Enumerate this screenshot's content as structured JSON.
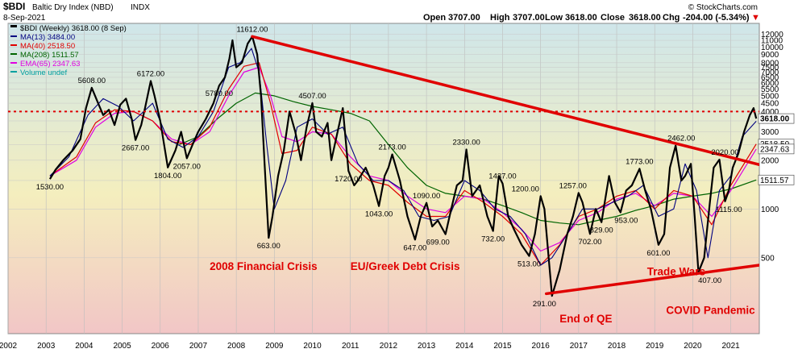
{
  "header": {
    "symbol": "$BDI",
    "name": "Baltic Dry Index (NBD)",
    "exchange": "INDX",
    "date": "8-Sep-2021",
    "brand": "© StockCharts.com",
    "open_label": "Open",
    "open": "3707.00",
    "high_label": "High",
    "high": "3707.00",
    "low_label": "Low",
    "low": "3618.00",
    "close_label": "Close",
    "close": "3618.00",
    "chg_label": "Chg",
    "chg": "-204.00 (-5.34%)"
  },
  "legend": [
    {
      "text": "$BDI (Weekly) 3618.00 (8 Sep)",
      "color": "#000000"
    },
    {
      "text": "MA(13) 3484.00",
      "color": "#000080"
    },
    {
      "text": "MA(40) 2518.50",
      "color": "#e00000"
    },
    {
      "text": "MA(208) 1511.57",
      "color": "#006400"
    },
    {
      "text": "EMA(65) 2347.63",
      "color": "#e000e0"
    },
    {
      "text": "Volume undef",
      "color": "#00a0a0"
    }
  ],
  "colors": {
    "bg_top": "#cfe6ea",
    "bg_mid": "#f4eebe",
    "bg_bottom": "#f2c6c6",
    "price": "#000000",
    "ma13": "#000080",
    "ma40": "#e00000",
    "ma208": "#006400",
    "ema65": "#e000e0",
    "annotation": "#e00000"
  },
  "chart_data": {
    "type": "line",
    "title": "$BDI Baltic Dry Index (NBD) INDX",
    "y_scale": "log",
    "ylim": [
      170,
      14000
    ],
    "xlim": [
      2002.0,
      2021.75
    ],
    "x_ticks": [
      "2002",
      "2003",
      "2004",
      "2005",
      "2006",
      "2007",
      "2008",
      "2009",
      "2010",
      "2011",
      "2012",
      "2013",
      "2014",
      "2015",
      "2016",
      "2017",
      "2018",
      "2019",
      "2020",
      "2021"
    ],
    "y_ticks": [
      "12000",
      "11000",
      "10000",
      "9000",
      "8000",
      "7500",
      "7000",
      "6500",
      "6000",
      "5500",
      "5000",
      "4500",
      "4000",
      "3500",
      "3000",
      "2500",
      "2000",
      "1500",
      "1000",
      "500"
    ],
    "series": [
      {
        "name": "$BDI (Weekly)",
        "x": [
          2003.1,
          2003.25,
          2003.45,
          2003.7,
          2003.9,
          2004.05,
          2004.2,
          2004.35,
          2004.5,
          2004.65,
          2004.8,
          2004.95,
          2005.1,
          2005.25,
          2005.35,
          2005.5,
          2005.6,
          2005.75,
          2005.85,
          2006.0,
          2006.2,
          2006.4,
          2006.55,
          2006.7,
          2006.85,
          2007.0,
          2007.2,
          2007.4,
          2007.55,
          2007.7,
          2007.82,
          2007.9,
          2008.0,
          2008.15,
          2008.3,
          2008.42,
          2008.55,
          2008.65,
          2008.75,
          2008.85,
          2008.95,
          2009.1,
          2009.25,
          2009.4,
          2009.55,
          2009.7,
          2009.85,
          2010.0,
          2010.1,
          2010.25,
          2010.4,
          2010.5,
          2010.65,
          2010.8,
          2010.95,
          2011.1,
          2011.2,
          2011.4,
          2011.6,
          2011.75,
          2011.9,
          2012.0,
          2012.1,
          2012.3,
          2012.5,
          2012.7,
          2012.85,
          2013.0,
          2013.15,
          2013.3,
          2013.5,
          2013.65,
          2013.8,
          2013.95,
          2014.05,
          2014.2,
          2014.4,
          2014.6,
          2014.75,
          2014.9,
          2015.0,
          2015.15,
          2015.3,
          2015.5,
          2015.7,
          2015.85,
          2016.0,
          2016.1,
          2016.3,
          2016.5,
          2016.7,
          2016.85,
          2017.0,
          2017.1,
          2017.3,
          2017.45,
          2017.6,
          2017.8,
          2017.95,
          2018.1,
          2018.25,
          2018.4,
          2018.6,
          2018.75,
          2018.9,
          2019.1,
          2019.25,
          2019.4,
          2019.55,
          2019.7,
          2019.8,
          2019.95,
          2020.05,
          2020.15,
          2020.3,
          2020.45,
          2020.55,
          2020.7,
          2020.85,
          2020.95,
          2021.05,
          2021.2,
          2021.35,
          2021.5,
          2021.6,
          2021.67
        ],
        "y": [
          1530,
          1750,
          2000,
          2300,
          2700,
          4200,
          5608,
          4600,
          3800,
          4100,
          3300,
          4400,
          4800,
          3600,
          2667,
          3300,
          4200,
          6172,
          5000,
          3500,
          1804,
          2300,
          3000,
          2057,
          2500,
          3000,
          3600,
          4500,
          5780,
          6500,
          8500,
          11000,
          7500,
          8000,
          10500,
          11612,
          9000,
          5000,
          1800,
          663,
          900,
          1600,
          2300,
          4000,
          3000,
          2000,
          3200,
          4507,
          3000,
          2800,
          3400,
          2000,
          2900,
          4200,
          1720,
          1400,
          1500,
          1800,
          1400,
          1043,
          1600,
          1800,
          2173,
          1500,
          900,
          647,
          900,
          1090,
          780,
          850,
          699,
          1000,
          1400,
          1500,
          2330,
          1200,
          1400,
          900,
          732,
          1600,
          1437,
          900,
          750,
          600,
          513,
          700,
          1200,
          1000,
          291,
          420,
          700,
          900,
          1257,
          1100,
          702,
          1000,
          829,
          1600,
          1100,
          953,
          1300,
          1400,
          1773,
          1300,
          1000,
          601,
          700,
          1800,
          2462,
          1500,
          1600,
          1900,
          900,
          407,
          500,
          1100,
          1800,
          2020,
          1115,
          1300,
          1800,
          2200,
          3000,
          3800,
          4200,
          3618
        ]
      },
      {
        "name": "MA(13)",
        "x": [
          2003.1,
          2003.6,
          2004.1,
          2004.5,
          2004.9,
          2005.3,
          2005.8,
          2006.2,
          2006.6,
          2007.0,
          2007.4,
          2007.8,
          2008.1,
          2008.4,
          2008.6,
          2008.8,
          2009.0,
          2009.3,
          2009.6,
          2010.0,
          2010.4,
          2010.8,
          2011.2,
          2011.6,
          2012.0,
          2012.4,
          2012.8,
          2013.2,
          2013.6,
          2014.0,
          2014.4,
          2014.8,
          2015.2,
          2015.6,
          2016.0,
          2016.3,
          2016.7,
          2017.1,
          2017.5,
          2017.9,
          2018.3,
          2018.7,
          2019.1,
          2019.5,
          2019.8,
          2020.1,
          2020.4,
          2020.7,
          2021.0,
          2021.3,
          2021.67
        ],
        "y": [
          1600,
          2100,
          3800,
          4800,
          4300,
          3500,
          4500,
          2700,
          2400,
          2800,
          4000,
          7500,
          8000,
          9800,
          7000,
          2500,
          1000,
          1500,
          3200,
          3600,
          2900,
          3200,
          1900,
          1500,
          1500,
          1300,
          900,
          850,
          900,
          1500,
          1300,
          1000,
          900,
          700,
          450,
          500,
          700,
          1000,
          1000,
          1100,
          1200,
          1400,
          900,
          1000,
          1900,
          1300,
          500,
          1300,
          1600,
          2800,
          3484
        ]
      },
      {
        "name": "MA(40)",
        "x": [
          2003.1,
          2003.8,
          2004.3,
          2004.8,
          2005.3,
          2005.8,
          2006.3,
          2006.8,
          2007.3,
          2007.8,
          2008.2,
          2008.6,
          2008.9,
          2009.2,
          2009.6,
          2010.0,
          2010.5,
          2011.0,
          2011.5,
          2012.0,
          2012.5,
          2013.0,
          2013.5,
          2014.0,
          2014.5,
          2015.0,
          2015.5,
          2016.0,
          2016.5,
          2017.0,
          2017.5,
          2018.0,
          2018.5,
          2019.0,
          2019.5,
          2020.0,
          2020.5,
          2021.0,
          2021.67
        ],
        "y": [
          1600,
          2100,
          3400,
          4100,
          4000,
          3500,
          2600,
          2500,
          3200,
          5500,
          7600,
          8000,
          4500,
          2200,
          2300,
          3200,
          2900,
          1900,
          1500,
          1400,
          1100,
          900,
          900,
          1300,
          1100,
          900,
          700,
          450,
          600,
          900,
          1000,
          1200,
          1300,
          1000,
          1300,
          1200,
          800,
          1400,
          2518
        ]
      },
      {
        "name": "MA(208)",
        "x": [
          2006.5,
          2007.0,
          2007.5,
          2008.0,
          2008.5,
          2009.0,
          2009.5,
          2010.0,
          2010.5,
          2011.0,
          2011.5,
          2012.0,
          2012.5,
          2013.0,
          2013.5,
          2014.0,
          2014.5,
          2015.0,
          2015.5,
          2016.0,
          2016.5,
          2017.0,
          2017.5,
          2018.0,
          2018.5,
          2019.0,
          2019.5,
          2020.0,
          2020.5,
          2021.0,
          2021.67
        ],
        "y": [
          2500,
          2800,
          3600,
          4500,
          5200,
          5000,
          4600,
          4300,
          4100,
          3900,
          3500,
          2500,
          1800,
          1400,
          1250,
          1200,
          1150,
          1050,
          950,
          850,
          820,
          800,
          850,
          900,
          980,
          1050,
          1150,
          1200,
          1250,
          1330,
          1511
        ]
      },
      {
        "name": "EMA(65)",
        "x": [
          2003.1,
          2003.8,
          2004.3,
          2004.8,
          2005.3,
          2005.8,
          2006.3,
          2006.8,
          2007.3,
          2007.8,
          2008.2,
          2008.6,
          2008.9,
          2009.2,
          2009.6,
          2010.0,
          2010.5,
          2011.0,
          2011.5,
          2012.0,
          2012.5,
          2013.0,
          2013.5,
          2014.0,
          2014.5,
          2015.0,
          2015.5,
          2016.0,
          2016.5,
          2017.0,
          2017.5,
          2018.0,
          2018.5,
          2019.0,
          2019.5,
          2020.0,
          2020.5,
          2021.0,
          2021.67
        ],
        "y": [
          1600,
          2000,
          3200,
          3900,
          4000,
          3500,
          2700,
          2500,
          3000,
          5000,
          7000,
          7500,
          5000,
          2800,
          2600,
          3000,
          2900,
          2100,
          1600,
          1500,
          1200,
          1000,
          950,
          1200,
          1150,
          950,
          750,
          550,
          620,
          850,
          950,
          1150,
          1250,
          1050,
          1250,
          1200,
          900,
          1300,
          2347
        ]
      }
    ],
    "point_labels": [
      {
        "x": 2003.1,
        "y": 1530,
        "text": "1530.00",
        "pos": "below"
      },
      {
        "x": 2004.2,
        "y": 5608,
        "text": "5608.00",
        "pos": "above"
      },
      {
        "x": 2005.35,
        "y": 2667,
        "text": "2667.00",
        "pos": "below"
      },
      {
        "x": 2005.75,
        "y": 6172,
        "text": "6172.00",
        "pos": "above"
      },
      {
        "x": 2006.2,
        "y": 1804,
        "text": "1804.00",
        "pos": "below"
      },
      {
        "x": 2006.7,
        "y": 2057,
        "text": "2057.00",
        "pos": "below"
      },
      {
        "x": 2007.55,
        "y": 5780,
        "text": "5780.00",
        "pos": "below"
      },
      {
        "x": 2008.42,
        "y": 11612,
        "text": "11612.00",
        "pos": "above"
      },
      {
        "x": 2008.85,
        "y": 663,
        "text": "663.00",
        "pos": "below"
      },
      {
        "x": 2010.0,
        "y": 4507,
        "text": "4507.00",
        "pos": "above"
      },
      {
        "x": 2010.95,
        "y": 1720,
        "text": "1720.00",
        "pos": "below"
      },
      {
        "x": 2011.75,
        "y": 1043,
        "text": "1043.00",
        "pos": "below"
      },
      {
        "x": 2012.1,
        "y": 2173,
        "text": "2173.00",
        "pos": "above"
      },
      {
        "x": 2012.7,
        "y": 647,
        "text": "647.00",
        "pos": "below"
      },
      {
        "x": 2013.0,
        "y": 1090,
        "text": "1090.00",
        "pos": "above"
      },
      {
        "x": 2013.3,
        "y": 699,
        "text": "699.00",
        "pos": "below"
      },
      {
        "x": 2014.05,
        "y": 2330,
        "text": "2330.00",
        "pos": "above"
      },
      {
        "x": 2014.75,
        "y": 732,
        "text": "732.00",
        "pos": "below"
      },
      {
        "x": 2015.0,
        "y": 1437,
        "text": "1437.00",
        "pos": "above"
      },
      {
        "x": 2015.6,
        "y": 1200,
        "text": "1200.00",
        "pos": "above"
      },
      {
        "x": 2015.7,
        "y": 513,
        "text": "513.00",
        "pos": "below"
      },
      {
        "x": 2016.1,
        "y": 291,
        "text": "291.00",
        "pos": "below"
      },
      {
        "x": 2016.85,
        "y": 1257,
        "text": "1257.00",
        "pos": "above"
      },
      {
        "x": 2017.3,
        "y": 702,
        "text": "702.00",
        "pos": "below"
      },
      {
        "x": 2017.6,
        "y": 829,
        "text": "829.00",
        "pos": "below"
      },
      {
        "x": 2018.25,
        "y": 953,
        "text": "953.00",
        "pos": "below"
      },
      {
        "x": 2018.6,
        "y": 1773,
        "text": "1773.00",
        "pos": "above"
      },
      {
        "x": 2019.1,
        "y": 601,
        "text": "601.00",
        "pos": "below"
      },
      {
        "x": 2019.7,
        "y": 2462,
        "text": "2462.00",
        "pos": "above"
      },
      {
        "x": 2020.45,
        "y": 407,
        "text": "407.00",
        "pos": "below"
      },
      {
        "x": 2020.85,
        "y": 2020,
        "text": "2020.00",
        "pos": "above"
      },
      {
        "x": 2020.95,
        "y": 1115,
        "text": "1115.00",
        "pos": "below"
      }
    ],
    "trendlines": [
      {
        "x1": 2008.42,
        "y1": 11612,
        "x2": 2021.75,
        "y2": 1880
      },
      {
        "x1": 2016.15,
        "y1": 300,
        "x2": 2021.75,
        "y2": 450
      }
    ],
    "hline": {
      "y": 4000
    },
    "right_value_labels": [
      {
        "y": 3618,
        "text": "3618.00",
        "bold": true
      },
      {
        "y": 2518.5,
        "text": "2518.50",
        "bold": false
      },
      {
        "y": 2347.63,
        "text": "2347.63",
        "bold": false
      },
      {
        "y": 1511.57,
        "text": "1511.57",
        "bold": false
      }
    ],
    "annotations": [
      {
        "text": "2008 Financial Crisis",
        "x": 2007.3,
        "y": 420
      },
      {
        "text": "EU/Greek Debt Crisis",
        "x": 2011.0,
        "y": 420
      },
      {
        "text": "Trade Wars",
        "x": 2018.8,
        "y": 390
      },
      {
        "text": "COVID Pandemic",
        "x": 2019.3,
        "y": 225
      },
      {
        "text": "End of QE",
        "x": 2016.5,
        "y": 200
      }
    ]
  }
}
